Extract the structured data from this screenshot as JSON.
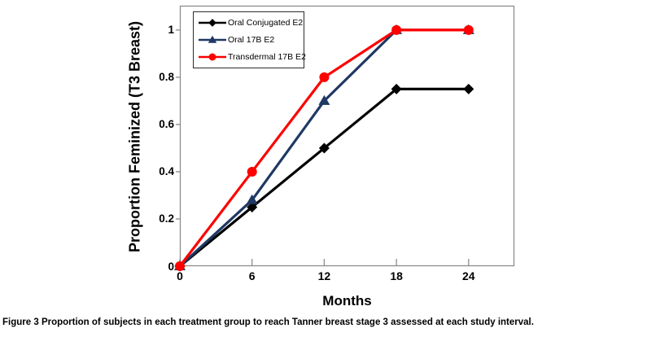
{
  "figure": {
    "caption_label": "Figure 3",
    "caption_text": "Proportion of subjects in each treatment group to reach Tanner breast stage 3 assessed at each study interval."
  },
  "chart_data": {
    "type": "line",
    "title": "",
    "xlabel": "Months",
    "ylabel": "Proportion Feminized (T3 Breast)",
    "x": [
      0,
      6,
      12,
      18,
      24
    ],
    "series": [
      {
        "name": "Oral Conjugated E2",
        "marker": "diamond",
        "color": "#000000",
        "values": [
          0,
          0.25,
          0.5,
          0.75,
          0.75
        ]
      },
      {
        "name": "Oral 17B E2",
        "marker": "triangle",
        "color": "#1f3864",
        "values": [
          0,
          0.28,
          0.7,
          1,
          1
        ]
      },
      {
        "name": "Transdermal 17B E2",
        "marker": "circle",
        "color": "#fe0000",
        "values": [
          0,
          0.4,
          0.8,
          1,
          1
        ]
      }
    ],
    "x_ticks": [
      0,
      6,
      12,
      18,
      24
    ],
    "x_tick_labels": [
      "0",
      "6",
      "12",
      "18",
      "24"
    ],
    "y_ticks": [
      0,
      0.2,
      0.4,
      0.6,
      0.8,
      1
    ],
    "y_tick_labels": [
      "0",
      "0.2",
      "0.4",
      "0.6",
      "0.8",
      "1"
    ],
    "xlim": [
      0,
      27.8
    ],
    "ylim": [
      0,
      1.103
    ],
    "grid": false,
    "legend_position": "top-left-inside",
    "axis_color": "#8c8c8c"
  }
}
